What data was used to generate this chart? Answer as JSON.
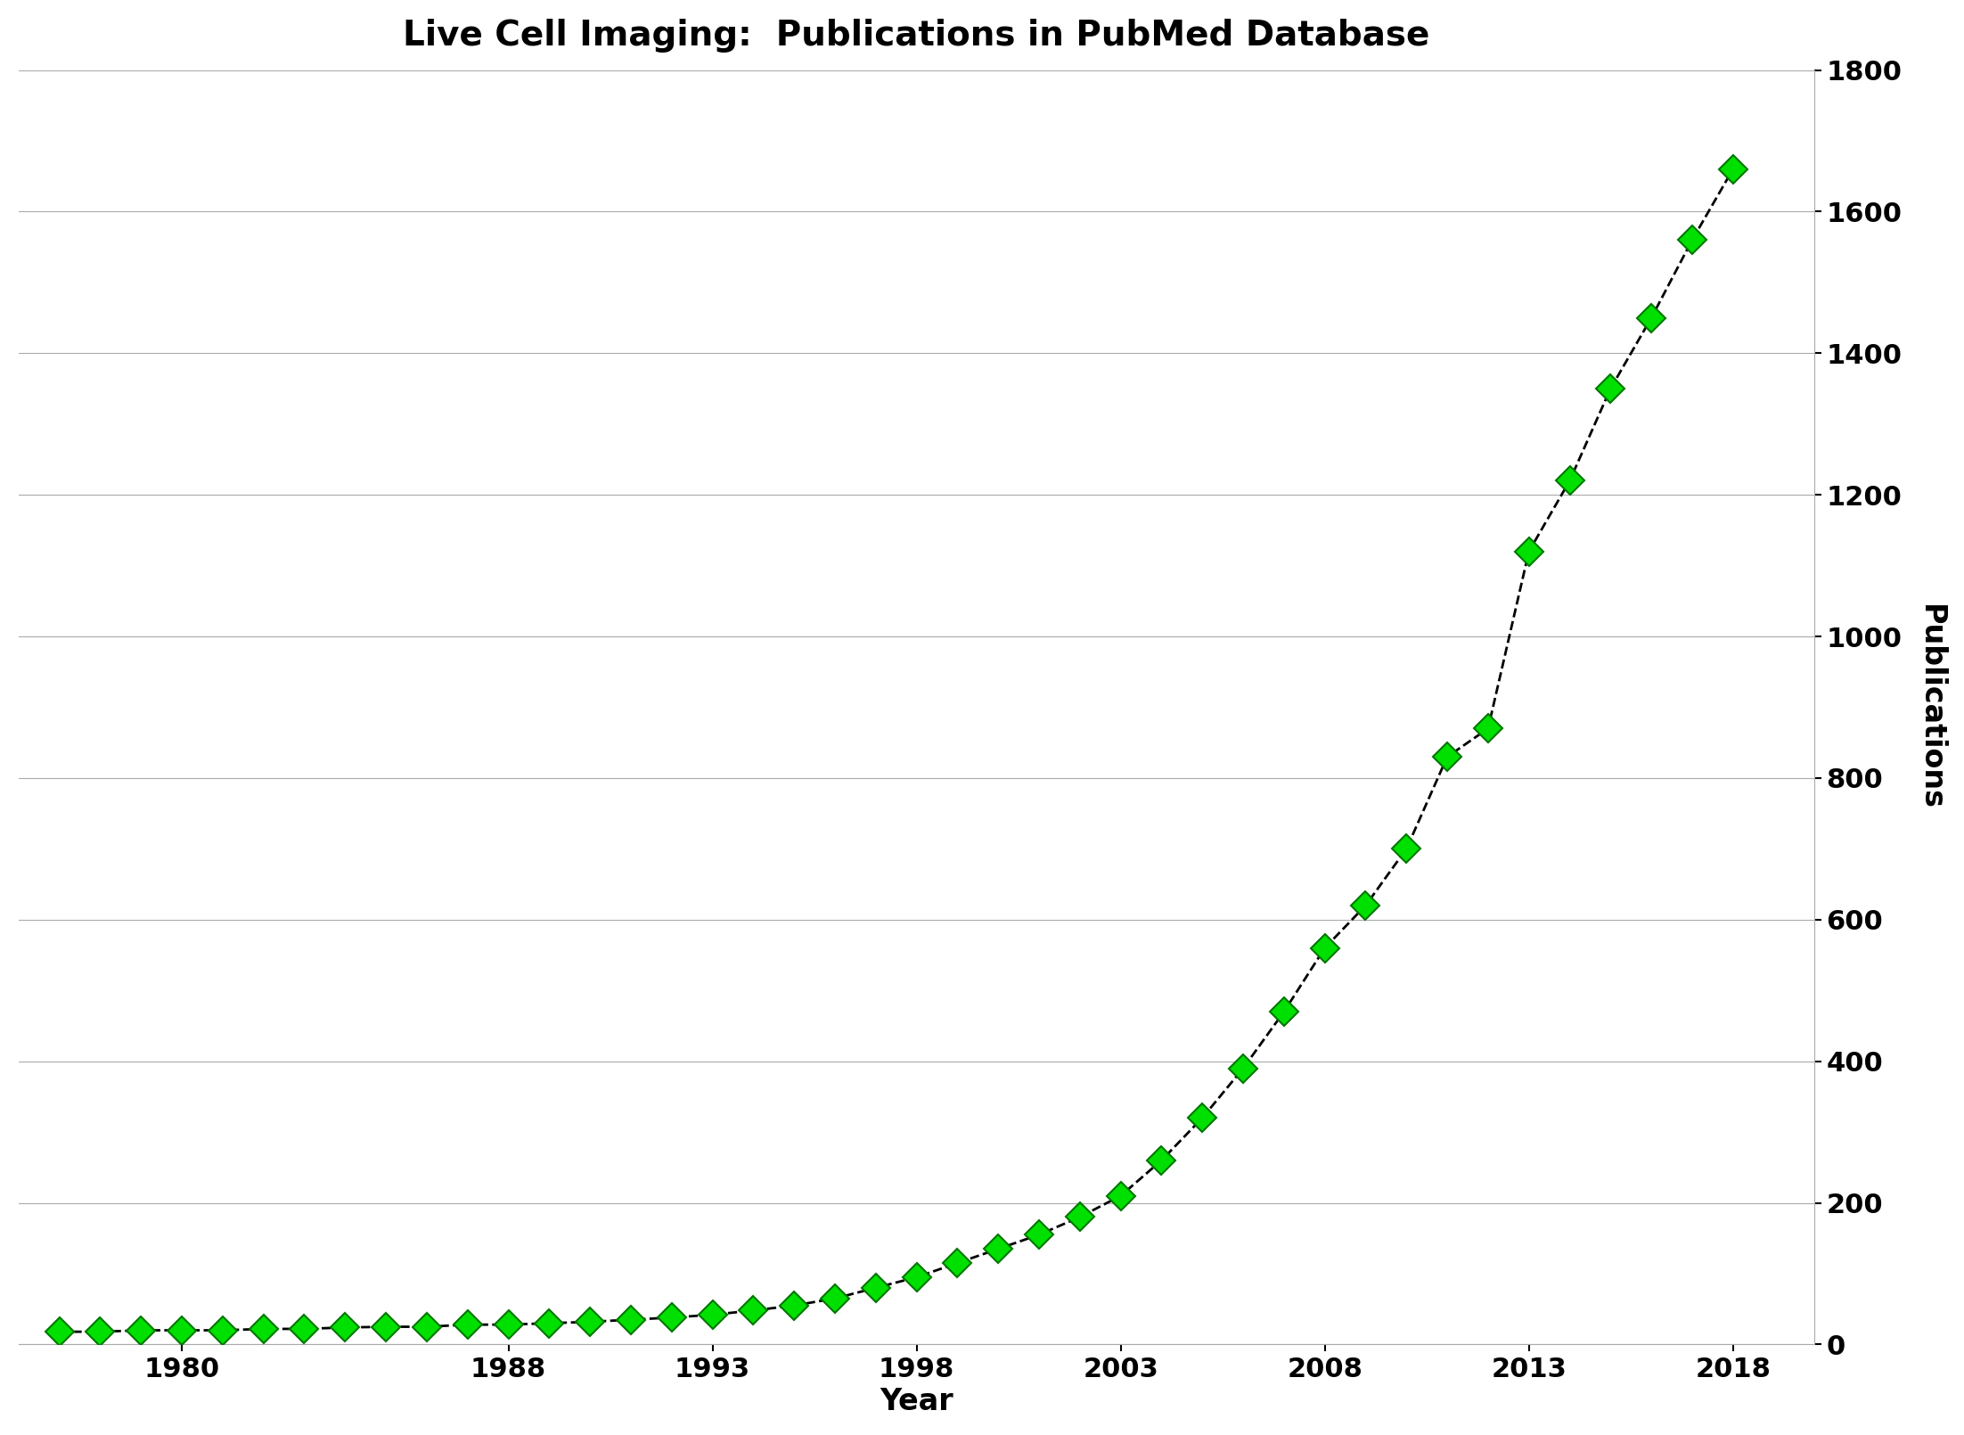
{
  "title": "Live Cell Imaging:  Publications in PubMed Database",
  "xlabel": "Year",
  "ylabel": "Publications",
  "years": [
    1977,
    1978,
    1979,
    1980,
    1981,
    1982,
    1983,
    1984,
    1985,
    1986,
    1987,
    1988,
    1989,
    1990,
    1991,
    1992,
    1993,
    1994,
    1995,
    1996,
    1997,
    1998,
    1999,
    2000,
    2001,
    2002,
    2003,
    2004,
    2005,
    2006,
    2007,
    2008,
    2009,
    2010,
    2011,
    2012,
    2013,
    2014,
    2015,
    2016,
    2017,
    2018
  ],
  "publications": [
    18,
    18,
    20,
    20,
    20,
    22,
    22,
    24,
    25,
    25,
    28,
    28,
    30,
    32,
    35,
    38,
    42,
    48,
    55,
    65,
    80,
    95,
    115,
    135,
    155,
    180,
    210,
    260,
    320,
    390,
    470,
    560,
    620,
    700,
    830,
    870,
    1120,
    1220,
    1350,
    1450,
    1560,
    1660
  ],
  "line_color": "#000000",
  "marker_color": "#00e000",
  "marker_edge_color": "#007700",
  "xlim": [
    1976,
    2020
  ],
  "ylim": [
    0,
    1800
  ],
  "yticks": [
    0,
    200,
    400,
    600,
    800,
    1000,
    1200,
    1400,
    1600,
    1800
  ],
  "xticks": [
    1980,
    1988,
    1993,
    1998,
    2003,
    2008,
    2013,
    2018
  ],
  "title_fontsize": 28,
  "label_fontsize": 24,
  "tick_fontsize": 22,
  "background_color": "#ffffff",
  "grid_color": "#aaaaaa"
}
